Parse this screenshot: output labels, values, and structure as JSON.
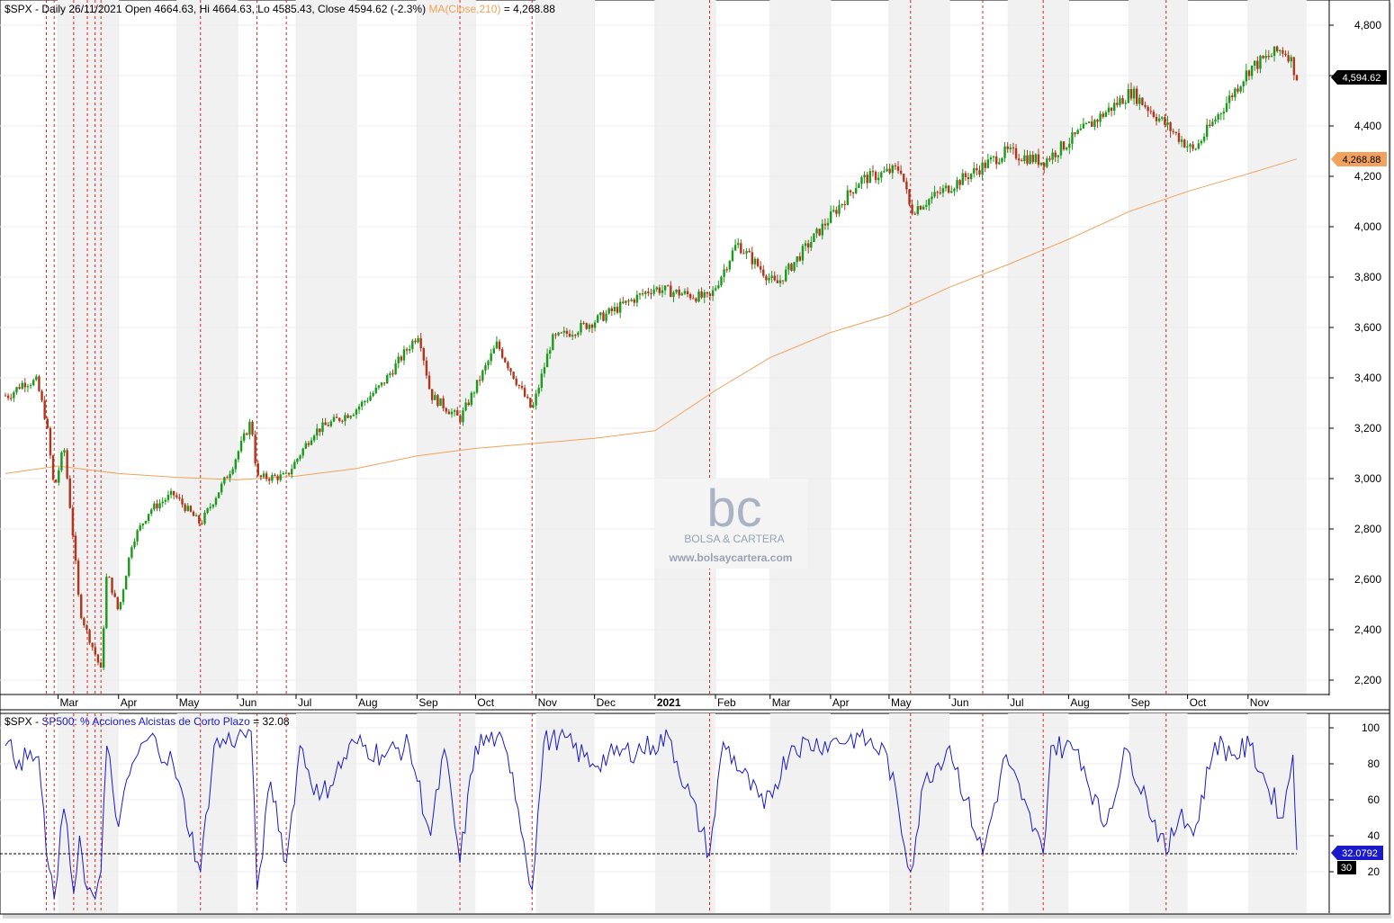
{
  "price_panel": {
    "symbol": "$SPX",
    "header_prefix": "$SPX - Daily 26/11/2021 Open 4664.63, Hi 4664.63, Lo 4585.43, Close 4594.62 (-2.3%)",
    "ma_label": "MA(Close,210)",
    "ma_value_text": "= 4,268.88",
    "last_price_tag": "4,594.62",
    "ma_tag": "4,268.88",
    "y_ticks": [
      "4,800",
      "4,600",
      "4,400",
      "4,200",
      "4,000",
      "3,800",
      "3,600",
      "3,400",
      "3,200",
      "3,000",
      "2,800",
      "2,600",
      "2,400",
      "2,200"
    ],
    "x_ticks": [
      "Mar",
      "Apr",
      "May",
      "Jun",
      "Jul",
      "Aug",
      "Sep",
      "Oct",
      "Nov",
      "Dec",
      "2021",
      "Feb",
      "Mar",
      "Apr",
      "May",
      "Jun",
      "Jul",
      "Aug",
      "Sep",
      "Oct",
      "Nov"
    ]
  },
  "indicator_panel": {
    "header_prefix": "$SPX - ",
    "series_label": "SP500: % Acciones Alcistas de Corto Plazo",
    "value_text": "= 32.08",
    "last_value_tag": "32.0792",
    "threshold_tag": "30",
    "y_ticks": [
      "100",
      "80",
      "60",
      "40",
      "20"
    ]
  },
  "watermark": {
    "logo_text": "bc",
    "brand": "BOLSA & CARTERA",
    "url": "www.bolsaycartera.com"
  },
  "colors": {
    "up_candle": "#1a9a1a",
    "down_candle": "#b0351a",
    "ma_line": "#f2a25c",
    "indicator_line": "#1a1ac8",
    "signal_line": "#e02020",
    "threshold_line": "#000000"
  },
  "chart_data": [
    {
      "type": "line",
      "title": "$SPX - Daily 26/11/2021",
      "description_of_series": "candlestick price with MA(Close,210)",
      "ylim": [
        2150,
        4850
      ],
      "series": [
        {
          "name": "$SPX",
          "style": "candlestick",
          "points": [
            [
              "2020-02-05",
              3330
            ],
            [
              "2020-02-12",
              3380
            ],
            [
              "2020-02-19",
              3386
            ],
            [
              "2020-02-24",
              3226
            ],
            [
              "2020-02-28",
              2954
            ],
            [
              "2020-03-04",
              3130
            ],
            [
              "2020-03-09",
              2746
            ],
            [
              "2020-03-12",
              2480
            ],
            [
              "2020-03-16",
              2386
            ],
            [
              "2020-03-20",
              2304
            ],
            [
              "2020-03-23",
              2237
            ],
            [
              "2020-03-26",
              2630
            ],
            [
              "2020-04-01",
              2470
            ],
            [
              "2020-04-08",
              2750
            ],
            [
              "2020-04-17",
              2875
            ],
            [
              "2020-04-29",
              2939
            ],
            [
              "2020-05-13",
              2820
            ],
            [
              "2020-05-29",
              3044
            ],
            [
              "2020-06-08",
              3232
            ],
            [
              "2020-06-11",
              3002
            ],
            [
              "2020-06-26",
              3009
            ],
            [
              "2020-07-10",
              3185
            ],
            [
              "2020-07-31",
              3271
            ],
            [
              "2020-08-14",
              3372
            ],
            [
              "2020-09-02",
              3580
            ],
            [
              "2020-09-08",
              3331
            ],
            [
              "2020-09-23",
              3236
            ],
            [
              "2020-10-12",
              3534
            ],
            [
              "2020-10-30",
              3270
            ],
            [
              "2020-11-09",
              3550
            ],
            [
              "2020-11-30",
              3621
            ],
            [
              "2020-12-31",
              3756
            ],
            [
              "2021-01-29",
              3714
            ],
            [
              "2021-02-12",
              3934
            ],
            [
              "2021-03-04",
              3768
            ],
            [
              "2021-04-16",
              4185
            ],
            [
              "2021-05-07",
              4232
            ],
            [
              "2021-05-12",
              4063
            ],
            [
              "2021-06-30",
              4297
            ],
            [
              "2021-07-19",
              4258
            ],
            [
              "2021-08-31",
              4522
            ],
            [
              "2021-09-02",
              4536
            ],
            [
              "2021-10-04",
              4300
            ],
            [
              "2021-11-02",
              4630
            ],
            [
              "2021-11-18",
              4704
            ],
            [
              "2021-11-22",
              4682
            ],
            [
              "2021-11-26",
              4594.62
            ]
          ]
        },
        {
          "name": "MA(Close,210)",
          "style": "line",
          "points": [
            [
              "2020-02-03",
              3020
            ],
            [
              "2020-03-01",
              3050
            ],
            [
              "2020-04-01",
              3020
            ],
            [
              "2020-05-01",
              3005
            ],
            [
              "2020-06-01",
              2995
            ],
            [
              "2020-07-01",
              3010
            ],
            [
              "2020-08-01",
              3040
            ],
            [
              "2020-09-01",
              3090
            ],
            [
              "2020-10-01",
              3120
            ],
            [
              "2020-11-01",
              3140
            ],
            [
              "2020-12-01",
              3160
            ],
            [
              "2021-01-01",
              3190
            ],
            [
              "2021-02-01",
              3350
            ],
            [
              "2021-03-01",
              3480
            ],
            [
              "2021-04-01",
              3580
            ],
            [
              "2021-05-01",
              3650
            ],
            [
              "2021-06-01",
              3760
            ],
            [
              "2021-07-01",
              3850
            ],
            [
              "2021-08-01",
              3950
            ],
            [
              "2021-09-01",
              4060
            ],
            [
              "2021-10-01",
              4140
            ],
            [
              "2021-11-01",
              4210
            ],
            [
              "2021-11-26",
              4268.88
            ]
          ]
        }
      ]
    },
    {
      "type": "line",
      "title": "SP500: % Acciones Alcistas de Corto Plazo",
      "ylim": [
        0,
        105
      ],
      "threshold": 30,
      "last_value": 32.0792,
      "series": [
        {
          "name": "SP500: % Acciones Alcistas de Corto Plazo",
          "points": [
            [
              "2020-02-03",
              90
            ],
            [
              "2020-02-10",
              82
            ],
            [
              "2020-02-20",
              84
            ],
            [
              "2020-02-24",
              30
            ],
            [
              "2020-02-28",
              5
            ],
            [
              "2020-03-04",
              55
            ],
            [
              "2020-03-09",
              8
            ],
            [
              "2020-03-12",
              40
            ],
            [
              "2020-03-16",
              10
            ],
            [
              "2020-03-20",
              5
            ],
            [
              "2020-03-23",
              20
            ],
            [
              "2020-03-26",
              90
            ],
            [
              "2020-04-01",
              45
            ],
            [
              "2020-04-08",
              80
            ],
            [
              "2020-04-17",
              95
            ],
            [
              "2020-04-29",
              80
            ],
            [
              "2020-05-13",
              20
            ],
            [
              "2020-05-20",
              90
            ],
            [
              "2020-06-01",
              95
            ],
            [
              "2020-06-08",
              98
            ],
            [
              "2020-06-11",
              10
            ],
            [
              "2020-06-18",
              70
            ],
            [
              "2020-06-26",
              25
            ],
            [
              "2020-07-03",
              90
            ],
            [
              "2020-07-13",
              60
            ],
            [
              "2020-07-31",
              92
            ],
            [
              "2020-08-14",
              85
            ],
            [
              "2020-08-28",
              90
            ],
            [
              "2020-09-08",
              40
            ],
            [
              "2020-09-15",
              88
            ],
            [
              "2020-09-23",
              25
            ],
            [
              "2020-10-01",
              90
            ],
            [
              "2020-10-12",
              95
            ],
            [
              "2020-10-20",
              75
            ],
            [
              "2020-10-30",
              10
            ],
            [
              "2020-11-05",
              92
            ],
            [
              "2020-11-13",
              95
            ],
            [
              "2020-11-30",
              80
            ],
            [
              "2020-12-11",
              85
            ],
            [
              "2020-12-31",
              90
            ],
            [
              "2021-01-08",
              95
            ],
            [
              "2021-01-29",
              30
            ],
            [
              "2021-02-05",
              92
            ],
            [
              "2021-02-26",
              55
            ],
            [
              "2021-03-12",
              90
            ],
            [
              "2021-04-01",
              92
            ],
            [
              "2021-04-16",
              95
            ],
            [
              "2021-04-30",
              85
            ],
            [
              "2021-05-12",
              20
            ],
            [
              "2021-05-19",
              70
            ],
            [
              "2021-06-01",
              90
            ],
            [
              "2021-06-18",
              30
            ],
            [
              "2021-06-30",
              85
            ],
            [
              "2021-07-08",
              60
            ],
            [
              "2021-07-19",
              30
            ],
            [
              "2021-07-23",
              90
            ],
            [
              "2021-08-06",
              88
            ],
            [
              "2021-08-19",
              45
            ],
            [
              "2021-08-31",
              88
            ],
            [
              "2021-09-10",
              60
            ],
            [
              "2021-09-20",
              30
            ],
            [
              "2021-09-28",
              55
            ],
            [
              "2021-10-04",
              40
            ],
            [
              "2021-10-15",
              92
            ],
            [
              "2021-10-25",
              85
            ],
            [
              "2021-11-02",
              90
            ],
            [
              "2021-11-10",
              70
            ],
            [
              "2021-11-19",
              50
            ],
            [
              "2021-11-24",
              85
            ],
            [
              "2021-11-26",
              32.08
            ]
          ]
        }
      ]
    }
  ]
}
